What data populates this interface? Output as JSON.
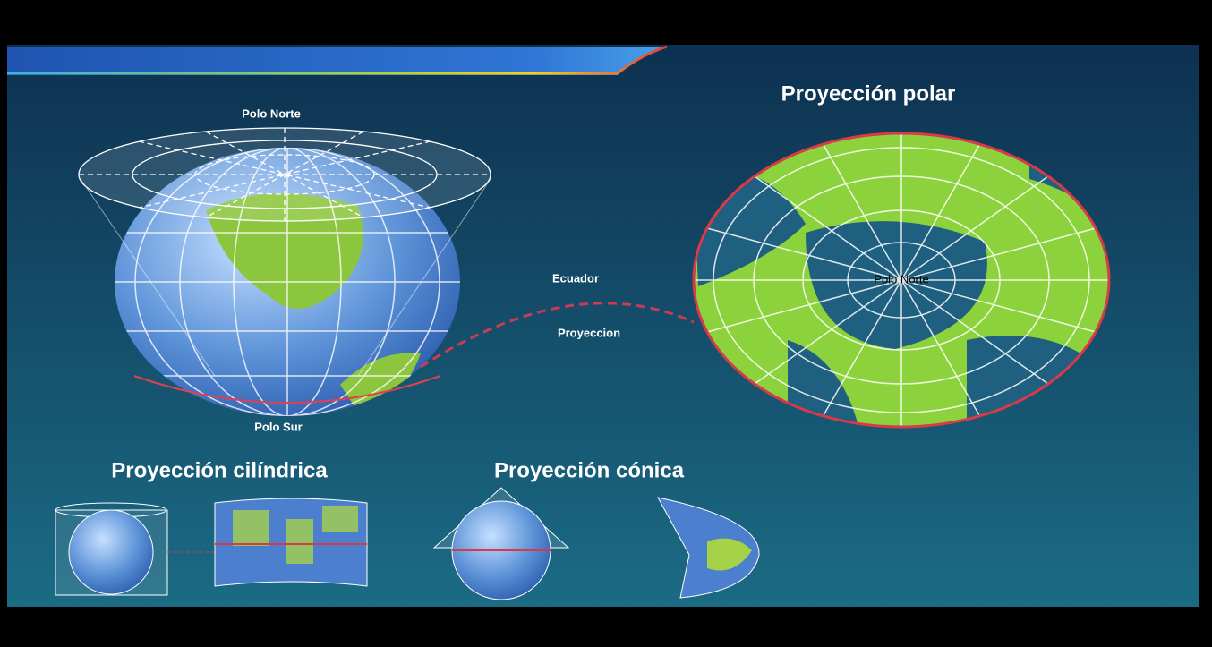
{
  "slide": {
    "globe_labels": {
      "north": "Polo Norte",
      "south": "Polo Sur"
    },
    "connector_labels": {
      "equator": "Ecuador",
      "projection": "Proyeccion"
    },
    "polar": {
      "title": "Proyección polar",
      "center_label": "Polo Norte"
    },
    "cylindrical": {
      "title": "Proyección cilíndrica"
    },
    "conic": {
      "title": "Proyección cónica"
    }
  }
}
